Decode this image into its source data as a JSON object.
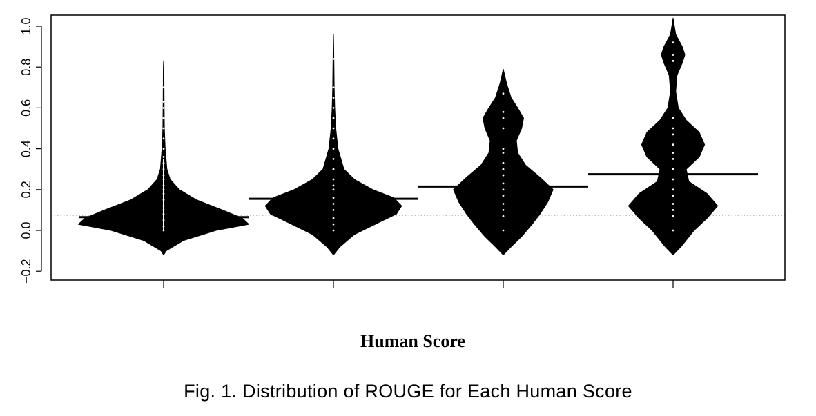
{
  "chart_data": {
    "type": "violin",
    "title": "",
    "xlabel": "Human Score",
    "ylabel": "",
    "ylim": [
      -0.25,
      1.05
    ],
    "yticks": [
      -0.2,
      0.0,
      0.2,
      0.4,
      0.6,
      0.8,
      1.0
    ],
    "ytick_labels": [
      "−0.2",
      "0.0",
      "0.2",
      "0.4",
      "0.6",
      "0.8",
      "1.0"
    ],
    "x_tick_count": 4,
    "overall_reference_line": 0.075,
    "series": [
      {
        "max": 0.83,
        "mean_line": 0.065,
        "density": [
          [
            -0.12,
            0.0
          ],
          [
            -0.1,
            0.02
          ],
          [
            -0.05,
            0.15
          ],
          [
            0.0,
            0.4
          ],
          [
            0.03,
            0.65
          ],
          [
            0.06,
            0.6
          ],
          [
            0.1,
            0.45
          ],
          [
            0.15,
            0.25
          ],
          [
            0.2,
            0.12
          ],
          [
            0.25,
            0.05
          ],
          [
            0.3,
            0.025
          ],
          [
            0.4,
            0.012
          ],
          [
            0.5,
            0.006
          ],
          [
            0.6,
            0.004
          ],
          [
            0.7,
            0.003
          ],
          [
            0.8,
            0.002
          ],
          [
            0.83,
            0.0
          ]
        ]
      },
      {
        "max": 0.96,
        "mean_line": 0.155,
        "density": [
          [
            -0.12,
            0.0
          ],
          [
            -0.08,
            0.05
          ],
          [
            -0.02,
            0.16
          ],
          [
            0.04,
            0.35
          ],
          [
            0.08,
            0.48
          ],
          [
            0.12,
            0.52
          ],
          [
            0.16,
            0.46
          ],
          [
            0.2,
            0.3
          ],
          [
            0.25,
            0.16
          ],
          [
            0.3,
            0.08
          ],
          [
            0.4,
            0.035
          ],
          [
            0.5,
            0.018
          ],
          [
            0.6,
            0.01
          ],
          [
            0.7,
            0.006
          ],
          [
            0.8,
            0.004
          ],
          [
            0.9,
            0.002
          ],
          [
            0.96,
            0.0
          ]
        ]
      },
      {
        "max": 0.79,
        "mean_line": 0.215,
        "density": [
          [
            -0.12,
            0.0
          ],
          [
            -0.08,
            0.06
          ],
          [
            -0.03,
            0.14
          ],
          [
            0.03,
            0.22
          ],
          [
            0.08,
            0.28
          ],
          [
            0.14,
            0.34
          ],
          [
            0.2,
            0.38
          ],
          [
            0.26,
            0.28
          ],
          [
            0.32,
            0.17
          ],
          [
            0.38,
            0.11
          ],
          [
            0.44,
            0.1
          ],
          [
            0.5,
            0.14
          ],
          [
            0.55,
            0.155
          ],
          [
            0.6,
            0.11
          ],
          [
            0.65,
            0.06
          ],
          [
            0.72,
            0.025
          ],
          [
            0.79,
            0.0
          ]
        ]
      },
      {
        "max": 1.04,
        "mean_line": 0.275,
        "density": [
          [
            -0.12,
            0.0
          ],
          [
            -0.08,
            0.06
          ],
          [
            0.0,
            0.16
          ],
          [
            0.06,
            0.26
          ],
          [
            0.12,
            0.34
          ],
          [
            0.18,
            0.26
          ],
          [
            0.24,
            0.12
          ],
          [
            0.3,
            0.1
          ],
          [
            0.36,
            0.2
          ],
          [
            0.42,
            0.24
          ],
          [
            0.48,
            0.2
          ],
          [
            0.54,
            0.1
          ],
          [
            0.6,
            0.04
          ],
          [
            0.68,
            0.02
          ],
          [
            0.76,
            0.03
          ],
          [
            0.82,
            0.07
          ],
          [
            0.86,
            0.09
          ],
          [
            0.9,
            0.07
          ],
          [
            0.96,
            0.02
          ],
          [
            1.04,
            0.0
          ]
        ]
      }
    ],
    "points": [
      [
        0.0,
        0.02,
        0.05,
        0.08,
        0.1,
        0.12,
        0.15,
        0.18,
        0.2,
        0.22,
        0.25,
        0.27,
        0.3,
        0.33,
        0.36,
        0.4,
        0.45,
        0.5,
        0.55,
        0.6,
        0.63,
        0.7
      ],
      [
        0.0,
        0.03,
        0.06,
        0.1,
        0.13,
        0.16,
        0.2,
        0.22,
        0.25,
        0.3,
        0.35,
        0.4,
        0.45,
        0.5,
        0.55,
        0.6,
        0.65,
        0.7,
        0.84
      ],
      [
        0.0,
        0.07,
        0.1,
        0.13,
        0.17,
        0.2,
        0.23,
        0.27,
        0.3,
        0.33,
        0.38,
        0.4,
        0.5,
        0.55,
        0.58,
        0.67
      ],
      [
        0.0,
        0.07,
        0.1,
        0.13,
        0.17,
        0.2,
        0.25,
        0.3,
        0.35,
        0.38,
        0.42,
        0.47,
        0.5,
        0.55,
        0.83,
        0.86,
        0.92
      ]
    ]
  },
  "caption": "Fig. 1.  Distribution of ROUGE for Each Human Score"
}
